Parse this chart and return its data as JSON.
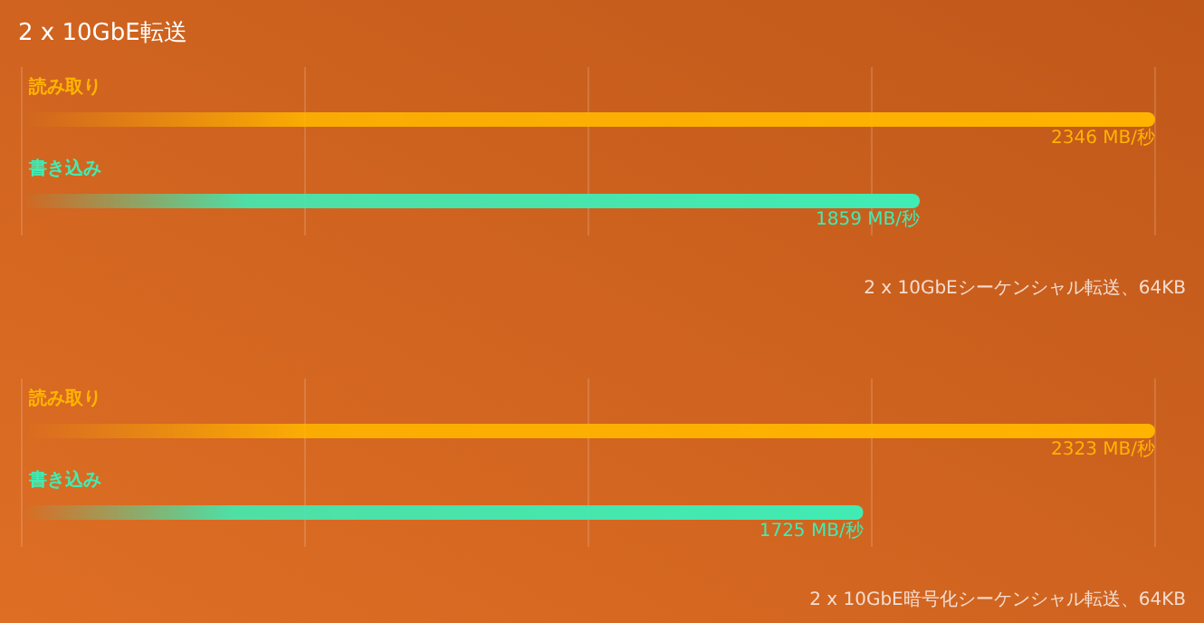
{
  "chart_data": [
    {
      "type": "bar",
      "orientation": "horizontal",
      "title": "2 x 10GbE転送",
      "categories": [
        "読み取り",
        "書き込み"
      ],
      "values": [
        2346,
        1859
      ],
      "colors": [
        "#ffb400",
        "#40ecb4"
      ],
      "value_labels": [
        "2346 MB/秒",
        "1859 MB/秒"
      ],
      "xlim": [
        0,
        2346
      ],
      "xticks": [
        {
          "value": 0,
          "label": null
        },
        {
          "value": 586.5,
          "label": null
        },
        {
          "value": 1173,
          "label": null
        },
        {
          "value": 1759.5,
          "label": null
        },
        {
          "value": 2346,
          "label": null
        }
      ],
      "grid": "x",
      "annotations": [
        "2 x 10GbEシーケンシャル転送、64KB"
      ]
    },
    {
      "type": "bar",
      "orientation": "horizontal",
      "categories": [
        "読み取り",
        "書き込み"
      ],
      "values": [
        2323,
        1725
      ],
      "colors": [
        "#ffb400",
        "#40ecb4"
      ],
      "value_labels": [
        "2323 MB/秒",
        "1725 MB/秒"
      ],
      "xlim": [
        0,
        2323
      ],
      "xticks": [
        {
          "value": 0,
          "label": null
        },
        {
          "value": 580.75,
          "label": null
        },
        {
          "value": 1161.5,
          "label": null
        },
        {
          "value": 1742.25,
          "label": null
        },
        {
          "value": 2323,
          "label": null
        }
      ],
      "grid": "x",
      "annotations": [
        "2 x 10GbE暗号化シーケンシャル転送、64KB"
      ]
    }
  ]
}
